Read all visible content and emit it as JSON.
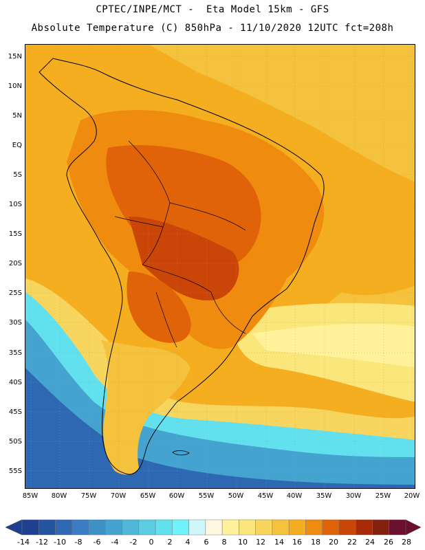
{
  "header": {
    "line1": "CPTEC/INPE/MCT -  Eta Model 15km - GFS",
    "line2": "Absolute Temperature (C) 850hPa - 11/10/2020 12UTC fct=208h"
  },
  "map": {
    "lat_labels": [
      "15N",
      "10N",
      "5N",
      "EQ",
      "5S",
      "10S",
      "15S",
      "20S",
      "25S",
      "30S",
      "35S",
      "40S",
      "45S",
      "50S",
      "55S"
    ],
    "lon_labels": [
      "85W",
      "80W",
      "75W",
      "70W",
      "65W",
      "60W",
      "55W",
      "50W",
      "45W",
      "40W",
      "35W",
      "30W",
      "25W",
      "20W"
    ],
    "background_color": "#f5b51f"
  },
  "colorbar": {
    "labels": [
      "-14",
      "-12",
      "-10",
      "-8",
      "-6",
      "-4",
      "-2",
      "0",
      "2",
      "4",
      "6",
      "8",
      "10",
      "12",
      "14",
      "16",
      "18",
      "20",
      "22",
      "24",
      "26",
      "28"
    ],
    "colors": [
      "#1f3f8f",
      "#2453a0",
      "#2e67b2",
      "#3b7dc4",
      "#3f91c8",
      "#45a3cf",
      "#4fb8d8",
      "#5bcde3",
      "#63e0ee",
      "#6ff2f9",
      "#cff6fb",
      "#fff7e0",
      "#fff29a",
      "#fbe67b",
      "#f8d55e",
      "#f5c23d",
      "#f4ae1f",
      "#ef8c10",
      "#e06309",
      "#c94508",
      "#a82a07",
      "#842010",
      "#6b0f2f"
    ]
  }
}
